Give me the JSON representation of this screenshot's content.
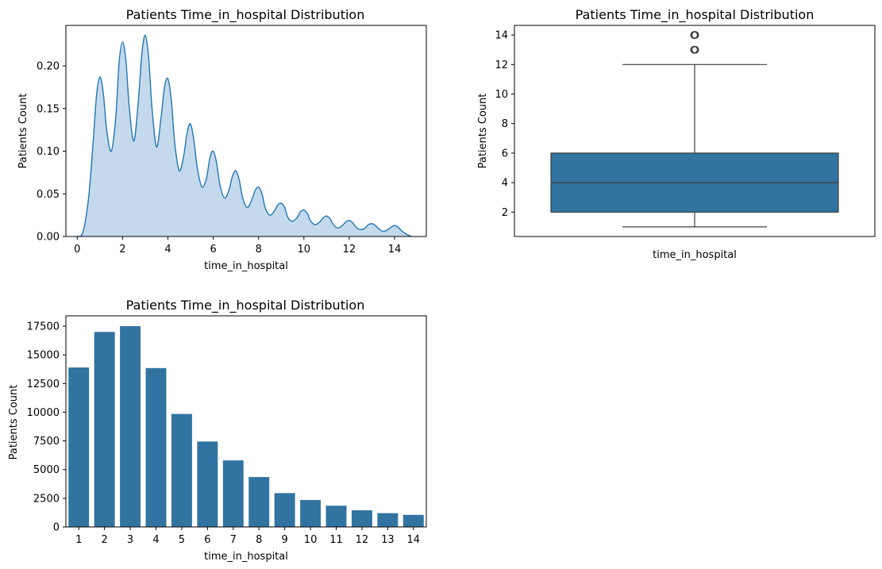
{
  "figure": {
    "background": "#ffffff",
    "mark_color": "#3274a1",
    "kde_line_color": "#1f77b4",
    "kde_fill_color": "#c5d9ec",
    "box_edge_color": "#3d3d3d"
  },
  "chart_data": [
    {
      "type": "area",
      "subtype": "kde",
      "title": "Patients Time_in_hospital Distribution",
      "xlabel": "time_in_hospital",
      "ylabel": "Patients Count",
      "xlim": [
        -0.5,
        15.4
      ],
      "ylim": [
        0,
        0.2475
      ],
      "xticks": [
        0,
        2,
        4,
        6,
        8,
        10,
        12,
        14
      ],
      "xtick_labels": [
        "0",
        "2",
        "4",
        "6",
        "8",
        "10",
        "12",
        "14"
      ],
      "yticks": [
        0,
        0.05,
        0.1,
        0.15,
        0.2
      ],
      "ytick_labels": [
        "0.00",
        "0.05",
        "0.10",
        "0.15",
        "0.20"
      ],
      "grid": false,
      "series": [
        {
          "x": [
            0,
            0.25,
            0.5,
            0.7,
            0.85,
            1,
            1.15,
            1.3,
            1.5,
            1.7,
            1.85,
            2,
            2.15,
            2.3,
            2.5,
            2.7,
            2.85,
            3,
            3.15,
            3.3,
            3.5,
            3.7,
            3.85,
            4,
            4.15,
            4.3,
            4.5,
            4.7,
            4.85,
            5,
            5.15,
            5.3,
            5.5,
            5.7,
            5.85,
            6,
            6.15,
            6.3,
            6.5,
            6.7,
            6.85,
            7,
            7.15,
            7.3,
            7.5,
            7.7,
            7.85,
            8,
            8.15,
            8.3,
            8.5,
            8.7,
            8.85,
            9,
            9.15,
            9.3,
            9.5,
            9.7,
            9.85,
            10,
            10.15,
            10.3,
            10.5,
            10.7,
            10.85,
            11,
            11.15,
            11.3,
            11.5,
            11.7,
            11.85,
            12,
            12.15,
            12.3,
            12.5,
            12.7,
            12.85,
            13,
            13.15,
            13.3,
            13.5,
            13.7,
            13.85,
            14,
            14.15,
            14.3,
            14.5,
            14.75
          ],
          "y": [
            0,
            0.005,
            0.045,
            0.11,
            0.165,
            0.187,
            0.168,
            0.125,
            0.1,
            0.14,
            0.205,
            0.228,
            0.205,
            0.15,
            0.112,
            0.16,
            0.214,
            0.236,
            0.21,
            0.15,
            0.105,
            0.14,
            0.175,
            0.185,
            0.16,
            0.11,
            0.077,
            0.095,
            0.122,
            0.132,
            0.112,
            0.08,
            0.058,
            0.068,
            0.092,
            0.1,
            0.086,
            0.06,
            0.045,
            0.055,
            0.071,
            0.077,
            0.066,
            0.045,
            0.034,
            0.043,
            0.054,
            0.058,
            0.05,
            0.033,
            0.025,
            0.03,
            0.037,
            0.039,
            0.034,
            0.022,
            0.018,
            0.022,
            0.029,
            0.031,
            0.027,
            0.018,
            0.014,
            0.017,
            0.022,
            0.024,
            0.021,
            0.014,
            0.01,
            0.013,
            0.017,
            0.019,
            0.016,
            0.011,
            0.008,
            0.01,
            0.014,
            0.015,
            0.013,
            0.009,
            0.006,
            0.008,
            0.011,
            0.013,
            0.011,
            0.007,
            0.003,
            0
          ]
        }
      ]
    },
    {
      "type": "box",
      "title": "Patients Time_in_hospital Distribution",
      "xlabel": "time_in_hospital",
      "ylabel": "Patients Count",
      "ylim": [
        0.35,
        14.65
      ],
      "yticks": [
        2,
        4,
        6,
        8,
        10,
        12,
        14
      ],
      "ytick_labels": [
        "2",
        "4",
        "6",
        "8",
        "10",
        "12",
        "14"
      ],
      "grid": false,
      "stats": {
        "whislo": 1,
        "q1": 2,
        "median": 4,
        "q3": 6,
        "whishi": 12,
        "fliers": [
          13,
          14
        ]
      }
    },
    {
      "type": "bar",
      "title": "Patients Time_in_hospital Distribution",
      "xlabel": "time_in_hospital",
      "ylabel": "Patients Count",
      "categories": [
        "1",
        "2",
        "3",
        "4",
        "5",
        "6",
        "7",
        "8",
        "9",
        "10",
        "11",
        "12",
        "13",
        "14"
      ],
      "values": [
        13900,
        17000,
        17500,
        13850,
        9850,
        7450,
        5800,
        4350,
        2950,
        2350,
        1850,
        1450,
        1200,
        1050
      ],
      "ylim": [
        0,
        18400
      ],
      "yticks": [
        0,
        2500,
        5000,
        7500,
        10000,
        12500,
        15000,
        17500
      ],
      "ytick_labels": [
        "0",
        "2500",
        "5000",
        "7500",
        "10000",
        "12500",
        "15000",
        "17500"
      ],
      "grid": false
    }
  ]
}
